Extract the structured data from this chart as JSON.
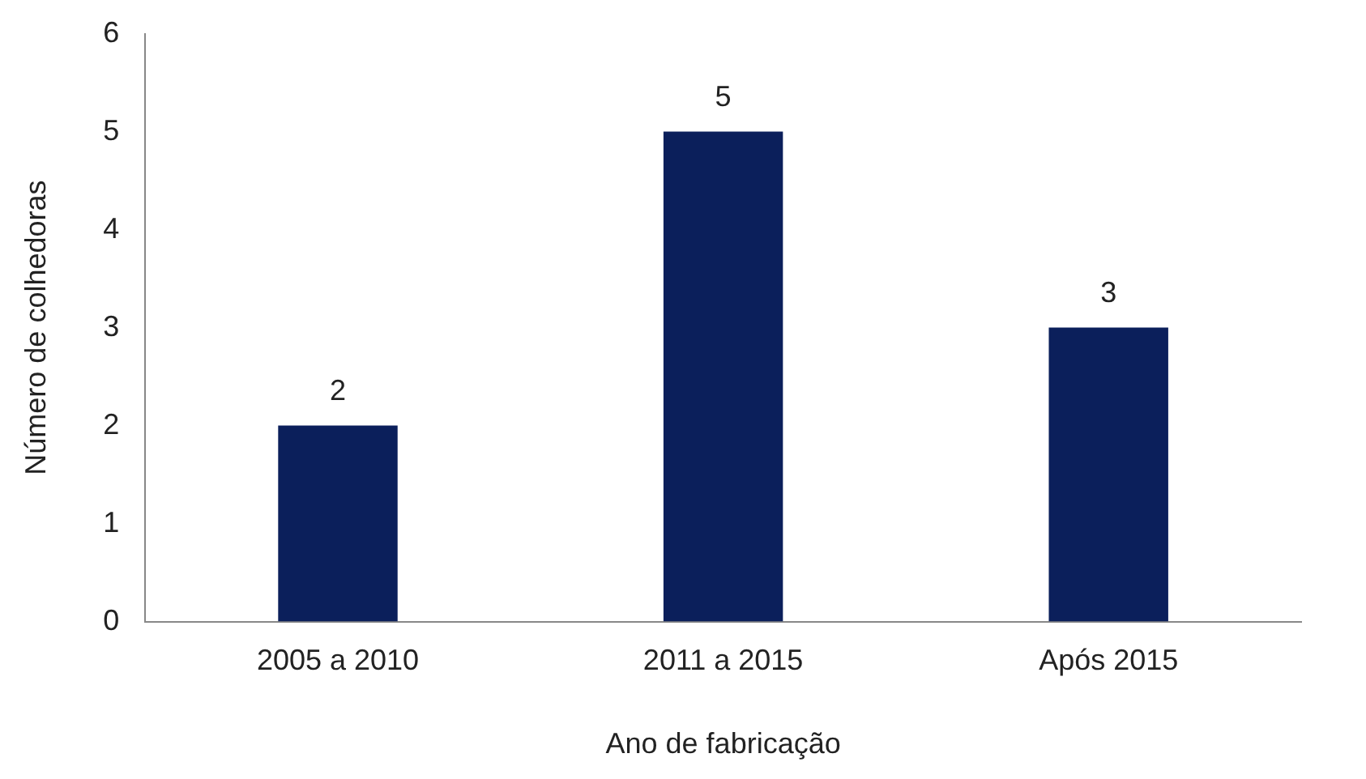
{
  "chart_data": {
    "type": "bar",
    "xlabel": "Ano de fabricação",
    "ylabel": "Número de colhedoras",
    "categories": [
      "2005 a 2010",
      "2011 a 2015",
      "Após 2015"
    ],
    "values": [
      2,
      5,
      3
    ],
    "color": "#0b1f5b",
    "ylim": [
      0,
      6
    ],
    "yticks": [
      0,
      1,
      2,
      3,
      4,
      5,
      6
    ],
    "grid": false,
    "legend": false,
    "data_labels": true
  }
}
